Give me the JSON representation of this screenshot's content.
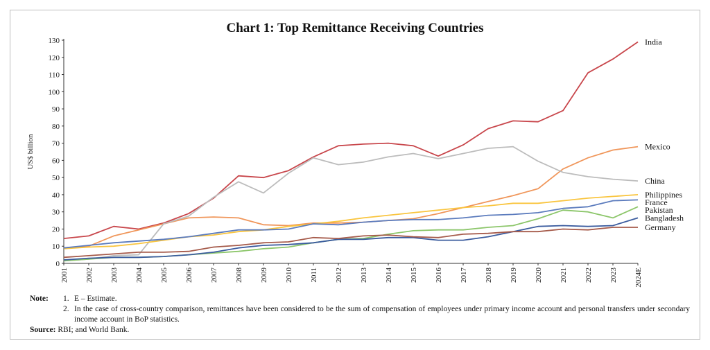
{
  "chart_data": {
    "type": "line",
    "title": "Chart 1: Top Remittance Receiving Countries",
    "ylabel": "US$ billion",
    "xlabel": "",
    "ylim": [
      0,
      130
    ],
    "yticks": [
      0,
      10,
      20,
      30,
      40,
      50,
      60,
      70,
      80,
      90,
      100,
      110,
      120,
      130
    ],
    "categories": [
      "2001",
      "2002",
      "2003",
      "2004",
      "2005",
      "2006",
      "2007",
      "2008",
      "2009",
      "2010",
      "2011",
      "2012",
      "2013",
      "2014",
      "2015",
      "2016",
      "2017",
      "2018",
      "2019",
      "2020",
      "2021",
      "2022",
      "2023",
      "2024E"
    ],
    "legend": "end-of-line labels",
    "series": [
      {
        "name": "India",
        "color": "#c8464b",
        "values": [
          14.5,
          16,
          21.5,
          20,
          23.5,
          29,
          38,
          51,
          50,
          54,
          62,
          68.5,
          69.5,
          70,
          68.5,
          62.5,
          69,
          78.5,
          83,
          82.5,
          89,
          111,
          119,
          129
        ]
      },
      {
        "name": "Mexico",
        "color": "#f0965a",
        "values": [
          9,
          10,
          16,
          19.5,
          23,
          26.5,
          27,
          26.5,
          22.5,
          22,
          23.5,
          23.5,
          24,
          25,
          26,
          29,
          32.5,
          36,
          39.5,
          43.5,
          55,
          61.5,
          66,
          68
        ]
      },
      {
        "name": "China",
        "color": "#bcbcbc",
        "values": [
          1.5,
          2.5,
          4.5,
          5,
          23,
          27.5,
          38.5,
          47.5,
          41,
          52.5,
          61.5,
          57.5,
          59,
          62,
          64,
          61,
          64,
          67,
          68,
          59.5,
          53,
          50.5,
          49,
          48
        ]
      },
      {
        "name": "Philippines",
        "color": "#f9c53f",
        "values": [
          8.5,
          9.5,
          10,
          11.5,
          13.5,
          15.5,
          16.5,
          18.5,
          19.5,
          21.5,
          23,
          24.5,
          26.5,
          28,
          29.5,
          31,
          32.5,
          33.5,
          35,
          35,
          36.5,
          38,
          39,
          40
        ]
      },
      {
        "name": "France",
        "color": "#5b7bbd",
        "values": [
          9,
          10.5,
          12,
          13,
          14,
          15.5,
          17.5,
          19.5,
          19.5,
          20,
          23,
          22.5,
          24,
          25,
          25.5,
          25.5,
          26.5,
          28,
          28.5,
          29.5,
          32,
          33,
          36.5,
          37
        ]
      },
      {
        "name": "Pakistan",
        "color": "#8cc66a",
        "values": [
          1.5,
          2.5,
          3.5,
          3.5,
          4,
          5,
          6,
          7,
          8.5,
          9.5,
          12,
          14,
          14.5,
          17,
          19,
          19.5,
          19.5,
          21,
          22,
          26,
          31,
          30,
          26.5,
          33
        ]
      },
      {
        "name": "Bangladesh",
        "color": "#3a5b9e",
        "values": [
          2,
          3,
          3.5,
          3.5,
          4,
          5,
          6.5,
          9,
          10.5,
          11,
          12,
          14,
          14,
          15,
          15,
          13.5,
          13.5,
          15.5,
          18.5,
          21.5,
          22,
          21.5,
          22,
          26.5
        ]
      },
      {
        "name": "Germany",
        "color": "#a55a4a",
        "values": [
          3.5,
          4.5,
          5.5,
          6.5,
          6.5,
          7,
          9.5,
          10.5,
          12,
          12.5,
          15,
          14.5,
          16,
          16.5,
          15.5,
          15,
          17,
          17.5,
          18.5,
          18.5,
          20,
          19.5,
          21,
          21
        ]
      }
    ]
  },
  "notes": {
    "label": "Note:",
    "items": [
      {
        "num": "1.",
        "text": "E – Estimate."
      },
      {
        "num": "2.",
        "text": "In the case of cross-country comparison, remittances have been considered to be the sum of compensation of employees under primary income account and personal transfers under secondary income account in BoP statistics."
      }
    ]
  },
  "source": {
    "label": "Source:",
    "text": "RBI; and World Bank."
  }
}
